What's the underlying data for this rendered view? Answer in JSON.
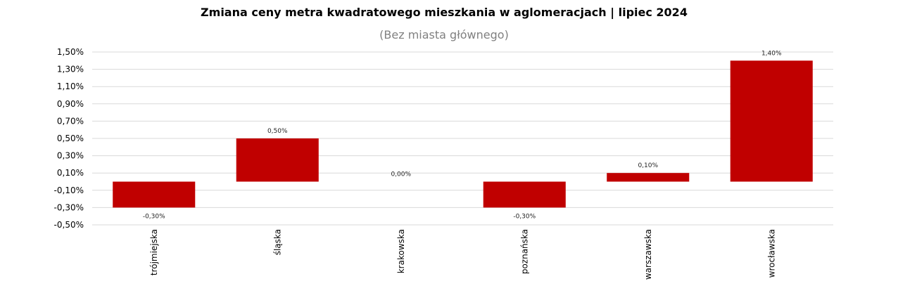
{
  "chart_data": {
    "type": "bar",
    "title": "Zmiana ceny metra kwadratowego mieszkania w aglomeracjach | lipiec 2024",
    "subtitle": "(Bez miasta głównego)",
    "categories": [
      "trójmiejska",
      "śląska",
      "krakowska",
      "poznańska",
      "warszawska",
      "wrocławska"
    ],
    "values": [
      -0.3,
      0.5,
      0.0,
      -0.3,
      0.1,
      1.4
    ],
    "data_labels": [
      "-0,30%",
      "0,50%",
      "0,00%",
      "-0,30%",
      "0,10%",
      "1,40%"
    ],
    "ylim": [
      -0.5,
      1.5
    ],
    "yticks": [
      1.5,
      1.3,
      1.1,
      0.9,
      0.7,
      0.5,
      0.3,
      0.1,
      -0.1,
      -0.3,
      -0.5
    ],
    "ytick_labels": [
      "1,50%",
      "1,30%",
      "1,10%",
      "0,90%",
      "0,70%",
      "0,50%",
      "0,30%",
      "0,10%",
      "-0,10%",
      "-0,30%",
      "-0,50%"
    ],
    "xlabel": "",
    "ylabel": "",
    "grid": true,
    "legend": "none",
    "bar_color": "#C00000",
    "grid_color": "#D9D9D9"
  }
}
